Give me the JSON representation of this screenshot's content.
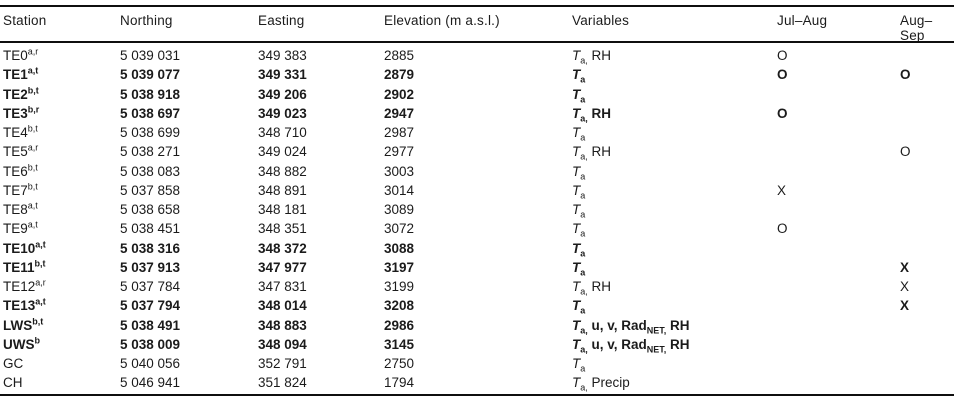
{
  "colors": {
    "text": "#1b1b1b",
    "rule": "#0f0f0f",
    "background": "#ffffff"
  },
  "table": {
    "columns": [
      {
        "key": "station",
        "label": "Station"
      },
      {
        "key": "northing",
        "label": "Northing"
      },
      {
        "key": "easting",
        "label": "Easting"
      },
      {
        "key": "elevation",
        "label": "Elevation (m a.s.l.)"
      },
      {
        "key": "variables",
        "label": "Variables"
      },
      {
        "key": "jul_aug",
        "label": "Jul–Aug"
      },
      {
        "key": "aug_sep",
        "label": "Aug–Sep"
      }
    ],
    "rows": [
      {
        "station": "TE0^{a,r}",
        "northing": "5 039 031",
        "easting": "349 383",
        "elevation": "2885",
        "variables": "*T*_{a,} RH",
        "jul_aug": "O",
        "aug_sep": "",
        "bold": false
      },
      {
        "station": "TE1^{a,t}",
        "northing": "5 039 077",
        "easting": "349 331",
        "elevation": "2879",
        "variables": "*T*_{a}",
        "jul_aug": "O",
        "aug_sep": "O",
        "bold": true
      },
      {
        "station": "TE2^{b,t}",
        "northing": "5 038 918",
        "easting": "349 206",
        "elevation": "2902",
        "variables": "*T*_{a}",
        "jul_aug": "",
        "aug_sep": "",
        "bold": true
      },
      {
        "station": "TE3^{b,r}",
        "northing": "5 038 697",
        "easting": "349 023",
        "elevation": "2947",
        "variables": "*T*_{a,} RH",
        "jul_aug": "O",
        "aug_sep": "",
        "bold": true
      },
      {
        "station": "TE4^{b,t}",
        "northing": "5 038 699",
        "easting": "348 710",
        "elevation": "2987",
        "variables": "*T*_{a}",
        "jul_aug": "",
        "aug_sep": "",
        "bold": false
      },
      {
        "station": "TE5^{a,r}",
        "northing": "5 038 271",
        "easting": "349 024",
        "elevation": "2977",
        "variables": "*T*_{a,} RH",
        "jul_aug": "",
        "aug_sep": "O",
        "bold": false
      },
      {
        "station": "TE6^{b,t}",
        "northing": "5 038 083",
        "easting": "348 882",
        "elevation": "3003",
        "variables": "*T*_{a}",
        "jul_aug": "",
        "aug_sep": "",
        "bold": false
      },
      {
        "station": "TE7^{b,t}",
        "northing": "5 037 858",
        "easting": "348 891",
        "elevation": "3014",
        "variables": "*T*_{a}",
        "jul_aug": "X",
        "aug_sep": "",
        "bold": false
      },
      {
        "station": "TE8^{a,t}",
        "northing": "5 038 658",
        "easting": "348 181",
        "elevation": "3089",
        "variables": "*T*_{a}",
        "jul_aug": "",
        "aug_sep": "",
        "bold": false
      },
      {
        "station": "TE9^{a,t}",
        "northing": "5 038 451",
        "easting": "348 351",
        "elevation": "3072",
        "variables": "*T*_{a}",
        "jul_aug": "O",
        "aug_sep": "",
        "bold": false
      },
      {
        "station": "TE10^{a,t}",
        "northing": "5 038 316",
        "easting": "348 372",
        "elevation": "3088",
        "variables": "*T*_{a}",
        "jul_aug": "",
        "aug_sep": "",
        "bold": true
      },
      {
        "station": "TE11^{b,t}",
        "northing": "5 037 913",
        "easting": "347 977",
        "elevation": "3197",
        "variables": "*T*_{a}",
        "jul_aug": "",
        "aug_sep": "X",
        "bold": true
      },
      {
        "station": "TE12^{a,r}",
        "northing": "5 037 784",
        "easting": "347 831",
        "elevation": "3199",
        "variables": "*T*_{a,} RH",
        "jul_aug": "",
        "aug_sep": "X",
        "bold": false
      },
      {
        "station": "TE13^{a,t}",
        "northing": "5 037 794",
        "easting": "348 014",
        "elevation": "3208",
        "variables": "*T*_{a}",
        "jul_aug": "",
        "aug_sep": "X",
        "bold": true
      },
      {
        "station": "LWS^{b,t}",
        "northing": "5 038 491",
        "easting": "348 883",
        "elevation": "2986",
        "variables": "*T*_{a,} u, v, Rad_{NET,} RH",
        "jul_aug": "",
        "aug_sep": "",
        "bold": true
      },
      {
        "station": "UWS^{b}",
        "northing": "5 038 009",
        "easting": "348 094",
        "elevation": "3145",
        "variables": "*T*_{a,} u, v, Rad_{NET,} RH",
        "jul_aug": "",
        "aug_sep": "",
        "bold": true
      },
      {
        "station": "GC",
        "northing": "5 040 056",
        "easting": "352 791",
        "elevation": "2750",
        "variables": "*T*_{a}",
        "jul_aug": "",
        "aug_sep": "",
        "bold": false
      },
      {
        "station": "CH",
        "northing": "5 046 941",
        "easting": "351 824",
        "elevation": "1794",
        "variables": "*T*_{a,} Precip",
        "jul_aug": "",
        "aug_sep": "",
        "bold": false
      }
    ]
  }
}
